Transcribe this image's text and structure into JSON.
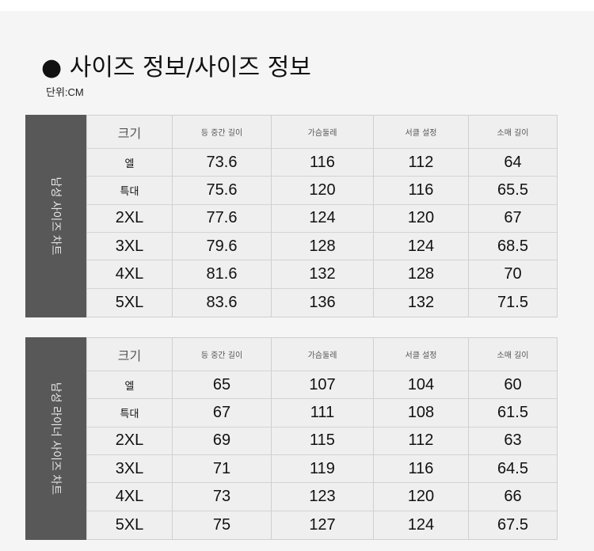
{
  "title": "● 사이즈 정보/사이즈 정보",
  "unit": "단위:CM",
  "tables": [
    {
      "side_label": "남성 사이즈 차트",
      "headers": [
        "크기",
        "등 중간 길이",
        "가슴둘레",
        "서클 설정",
        "소매 길이"
      ],
      "rows": [
        [
          "엘",
          "73.6",
          "116",
          "112",
          "64"
        ],
        [
          "특대",
          "75.6",
          "120",
          "116",
          "65.5"
        ],
        [
          "2XL",
          "77.6",
          "124",
          "120",
          "67"
        ],
        [
          "3XL",
          "79.6",
          "128",
          "124",
          "68.5"
        ],
        [
          "4XL",
          "81.6",
          "132",
          "128",
          "70"
        ],
        [
          "5XL",
          "83.6",
          "136",
          "132",
          "71.5"
        ]
      ]
    },
    {
      "side_label": "남성 라이너 사이즈 차트",
      "headers": [
        "크기",
        "등 중간 길이",
        "가슴둘레",
        "서클 설정",
        "소매 길이"
      ],
      "rows": [
        [
          "엘",
          "65",
          "107",
          "104",
          "60"
        ],
        [
          "특대",
          "67",
          "111",
          "108",
          "61.5"
        ],
        [
          "2XL",
          "69",
          "115",
          "112",
          "63"
        ],
        [
          "3XL",
          "71",
          "119",
          "116",
          "64.5"
        ],
        [
          "4XL",
          "73",
          "123",
          "120",
          "66"
        ],
        [
          "5XL",
          "75",
          "127",
          "124",
          "67.5"
        ]
      ]
    }
  ]
}
